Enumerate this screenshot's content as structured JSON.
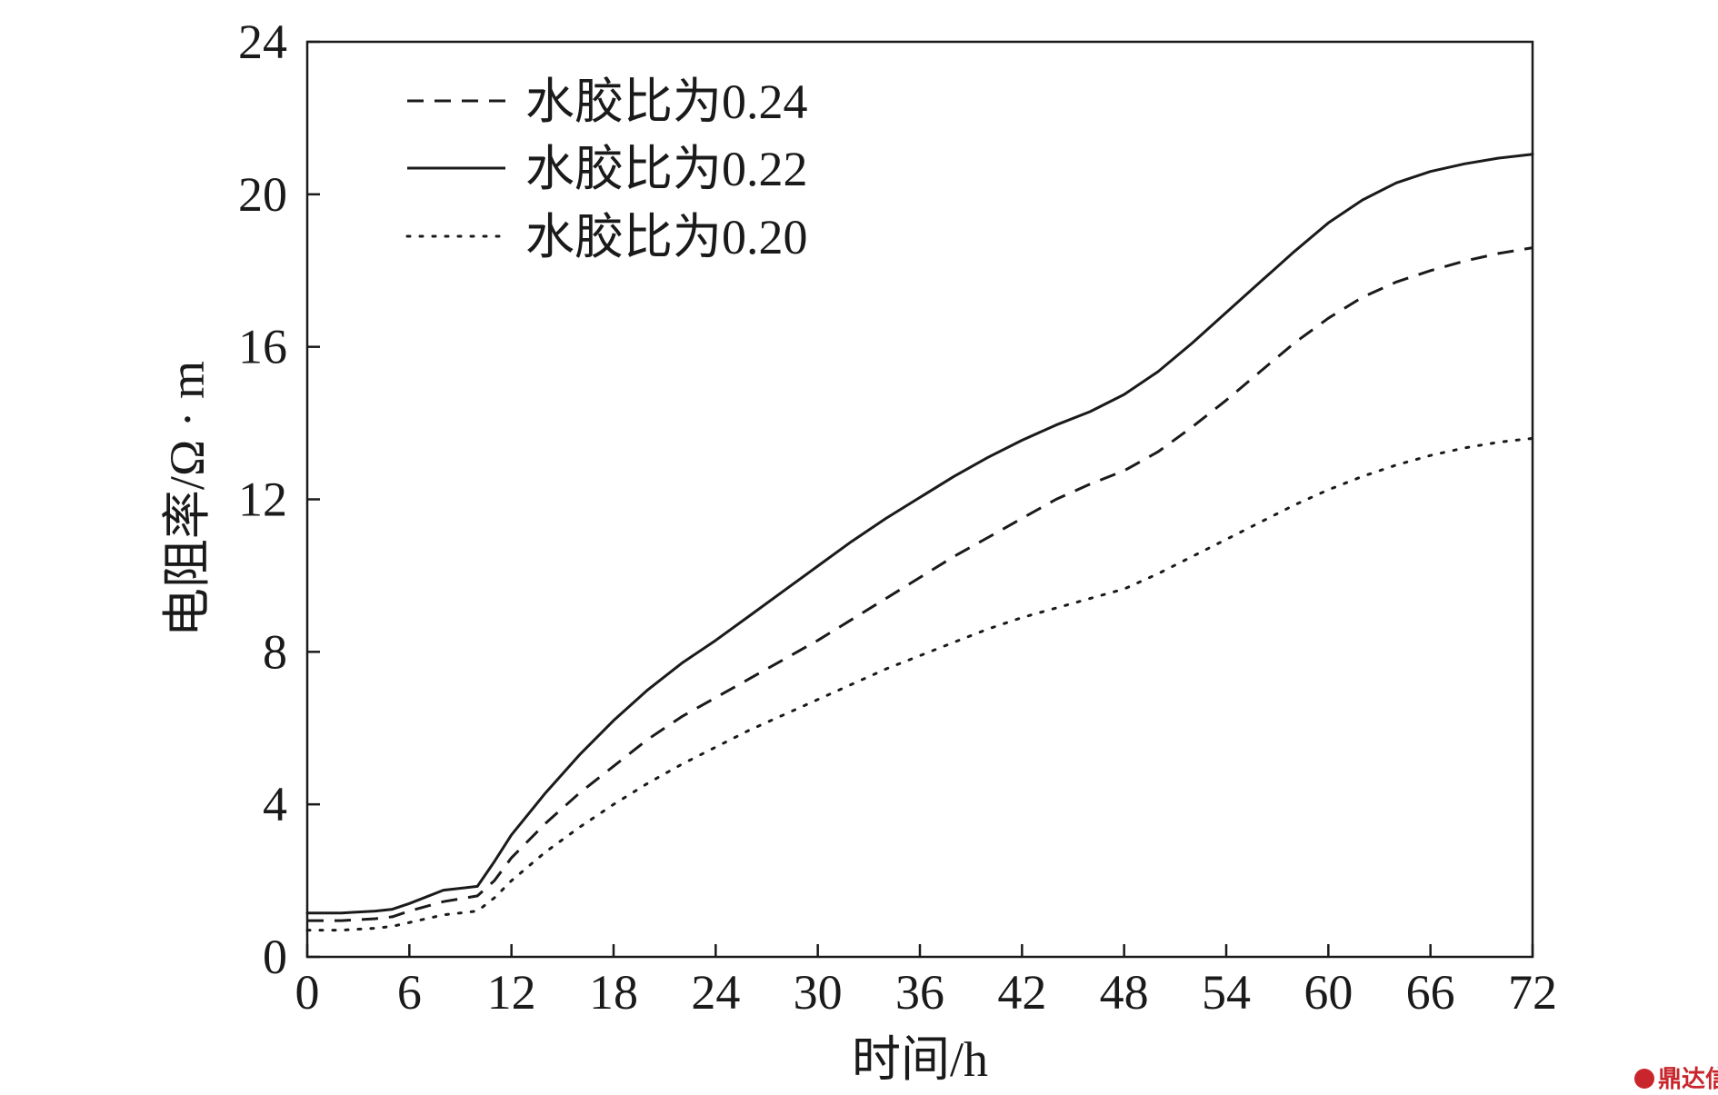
{
  "chart_data": {
    "type": "line",
    "title": "",
    "xlabel": "时间/h",
    "ylabel": "电阻率/Ω · m",
    "xlim": [
      0,
      72
    ],
    "ylim": [
      0,
      24
    ],
    "xticks": [
      0,
      6,
      12,
      18,
      24,
      30,
      36,
      42,
      48,
      54,
      60,
      66,
      72
    ],
    "yticks": [
      0,
      4,
      8,
      12,
      16,
      20,
      24
    ],
    "grid": false,
    "legend_position": "top-left",
    "series": [
      {
        "name": "水胶比为0.24",
        "style": "dashed",
        "color": "#1a1a1a",
        "x": [
          0,
          2,
          4,
          5,
          6,
          8,
          10,
          11,
          12,
          14,
          16,
          18,
          20,
          22,
          24,
          26,
          28,
          30,
          32,
          34,
          36,
          38,
          40,
          42,
          44,
          46,
          48,
          50,
          52,
          54,
          56,
          58,
          60,
          62,
          64,
          66,
          68,
          70,
          72
        ],
        "y": [
          0.95,
          0.95,
          1.0,
          1.05,
          1.2,
          1.45,
          1.6,
          2.0,
          2.6,
          3.5,
          4.3,
          5.0,
          5.7,
          6.3,
          6.8,
          7.3,
          7.8,
          8.3,
          8.85,
          9.4,
          9.95,
          10.5,
          11.0,
          11.5,
          12.0,
          12.4,
          12.75,
          13.25,
          13.9,
          14.6,
          15.35,
          16.1,
          16.75,
          17.3,
          17.7,
          18.0,
          18.25,
          18.45,
          18.6
        ]
      },
      {
        "name": "水胶比为0.22",
        "style": "solid",
        "color": "#1a1a1a",
        "x": [
          0,
          2,
          4,
          5,
          6,
          8,
          10,
          11,
          12,
          14,
          16,
          18,
          20,
          22,
          24,
          26,
          28,
          30,
          32,
          34,
          36,
          38,
          40,
          42,
          44,
          46,
          48,
          50,
          52,
          54,
          56,
          58,
          60,
          62,
          64,
          66,
          68,
          70,
          72
        ],
        "y": [
          1.15,
          1.15,
          1.2,
          1.25,
          1.4,
          1.75,
          1.85,
          2.5,
          3.2,
          4.3,
          5.3,
          6.2,
          7.0,
          7.7,
          8.3,
          8.95,
          9.6,
          10.25,
          10.9,
          11.5,
          12.05,
          12.6,
          13.1,
          13.55,
          13.95,
          14.3,
          14.75,
          15.35,
          16.1,
          16.9,
          17.7,
          18.5,
          19.25,
          19.85,
          20.3,
          20.6,
          20.8,
          20.95,
          21.05
        ]
      },
      {
        "name": "水胶比为0.20",
        "style": "dotted",
        "color": "#1a1a1a",
        "x": [
          0,
          2,
          4,
          5,
          6,
          8,
          10,
          11,
          12,
          14,
          16,
          18,
          20,
          22,
          24,
          26,
          28,
          30,
          32,
          34,
          36,
          38,
          40,
          42,
          44,
          46,
          48,
          50,
          52,
          54,
          56,
          58,
          60,
          62,
          64,
          66,
          68,
          70,
          72
        ],
        "y": [
          0.7,
          0.7,
          0.75,
          0.8,
          0.9,
          1.1,
          1.2,
          1.55,
          2.0,
          2.75,
          3.4,
          4.0,
          4.55,
          5.05,
          5.5,
          5.95,
          6.35,
          6.75,
          7.15,
          7.55,
          7.9,
          8.25,
          8.6,
          8.9,
          9.15,
          9.4,
          9.65,
          10.05,
          10.5,
          10.95,
          11.4,
          11.85,
          12.25,
          12.6,
          12.9,
          13.15,
          13.35,
          13.5,
          13.6
        ]
      }
    ]
  },
  "watermark": {
    "text": "鼎达信",
    "color": "#c8262c"
  }
}
